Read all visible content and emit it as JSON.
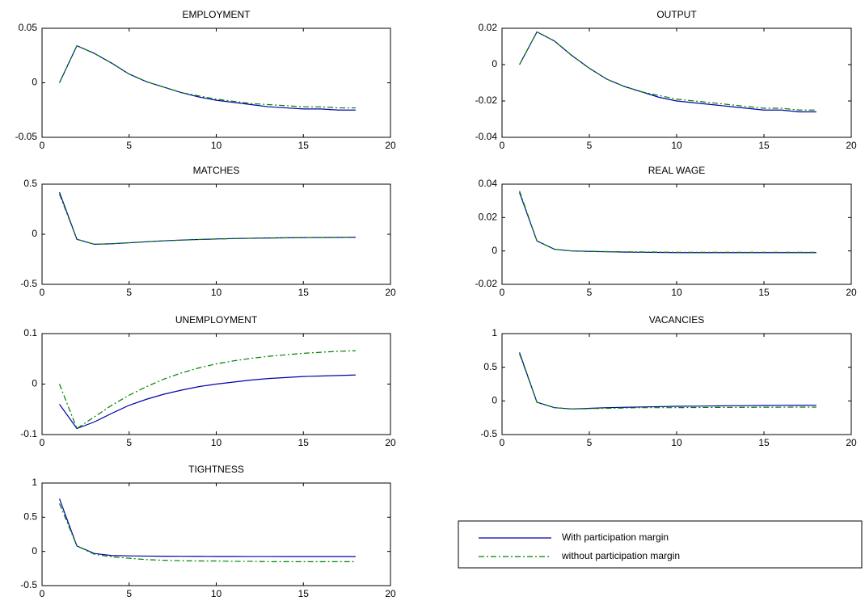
{
  "chart_data": [
    {
      "type": "line",
      "title": "EMPLOYMENT",
      "x": [
        1,
        2,
        3,
        4,
        5,
        6,
        7,
        8,
        9,
        10,
        11,
        12,
        13,
        14,
        15,
        16,
        17,
        18
      ],
      "xlim": [
        0,
        20
      ],
      "xticks": [
        0,
        5,
        10,
        15,
        20
      ],
      "ylim": [
        -0.05,
        0.05
      ],
      "yticks": [
        -0.05,
        0,
        0.05
      ],
      "series": [
        {
          "values": [
            0,
            0.034,
            0.027,
            0.018,
            0.008,
            0.001,
            -0.004,
            -0.009,
            -0.013,
            -0.016,
            -0.018,
            -0.02,
            -0.022,
            -0.023,
            -0.024,
            -0.024,
            -0.025,
            -0.025
          ]
        },
        {
          "values": [
            0,
            0.034,
            0.027,
            0.018,
            0.008,
            0.001,
            -0.004,
            -0.009,
            -0.012,
            -0.015,
            -0.017,
            -0.019,
            -0.02,
            -0.021,
            -0.022,
            -0.022,
            -0.023,
            -0.023
          ]
        }
      ]
    },
    {
      "type": "line",
      "title": "OUTPUT",
      "x": [
        1,
        2,
        3,
        4,
        5,
        6,
        7,
        8,
        9,
        10,
        11,
        12,
        13,
        14,
        15,
        16,
        17,
        18
      ],
      "xlim": [
        0,
        20
      ],
      "xticks": [
        0,
        5,
        10,
        15,
        20
      ],
      "ylim": [
        -0.04,
        0.02
      ],
      "yticks": [
        -0.04,
        -0.02,
        0,
        0.02
      ],
      "series": [
        {
          "values": [
            0,
            0.018,
            0.013,
            0.005,
            -0.002,
            -0.008,
            -0.012,
            -0.015,
            -0.018,
            -0.02,
            -0.021,
            -0.022,
            -0.023,
            -0.024,
            -0.025,
            -0.025,
            -0.026,
            -0.026
          ]
        },
        {
          "values": [
            0,
            0.018,
            0.013,
            0.005,
            -0.002,
            -0.008,
            -0.012,
            -0.015,
            -0.017,
            -0.019,
            -0.02,
            -0.021,
            -0.022,
            -0.023,
            -0.024,
            -0.024,
            -0.025,
            -0.025
          ]
        }
      ]
    },
    {
      "type": "line",
      "title": "MATCHES",
      "x": [
        1,
        2,
        3,
        4,
        5,
        6,
        7,
        8,
        9,
        10,
        11,
        12,
        13,
        14,
        15,
        16,
        17,
        18
      ],
      "xlim": [
        0,
        20
      ],
      "xticks": [
        0,
        5,
        10,
        15,
        20
      ],
      "ylim": [
        -0.5,
        0.5
      ],
      "yticks": [
        -0.5,
        0,
        0.5
      ],
      "series": [
        {
          "values": [
            0.42,
            -0.05,
            -0.1,
            -0.095,
            -0.085,
            -0.075,
            -0.065,
            -0.058,
            -0.052,
            -0.047,
            -0.043,
            -0.04,
            -0.037,
            -0.035,
            -0.033,
            -0.032,
            -0.031,
            -0.03
          ]
        },
        {
          "values": [
            0.4,
            -0.05,
            -0.1,
            -0.095,
            -0.085,
            -0.075,
            -0.066,
            -0.059,
            -0.053,
            -0.048,
            -0.044,
            -0.041,
            -0.038,
            -0.036,
            -0.034,
            -0.033,
            -0.032,
            -0.031
          ]
        }
      ]
    },
    {
      "type": "line",
      "title": "REAL WAGE",
      "x": [
        1,
        2,
        3,
        4,
        5,
        6,
        7,
        8,
        9,
        10,
        11,
        12,
        13,
        14,
        15,
        16,
        17,
        18
      ],
      "xlim": [
        0,
        20
      ],
      "xticks": [
        0,
        5,
        10,
        15,
        20
      ],
      "ylim": [
        -0.02,
        0.04
      ],
      "yticks": [
        -0.02,
        0,
        0.02,
        0.04
      ],
      "series": [
        {
          "values": [
            0.035,
            0.006,
            0.001,
            0,
            -0.0003,
            -0.0005,
            -0.0007,
            -0.0008,
            -0.0009,
            -0.001,
            -0.001,
            -0.001,
            -0.001,
            -0.001,
            -0.001,
            -0.001,
            -0.001,
            -0.001
          ]
        },
        {
          "values": [
            0.036,
            0.006,
            0.001,
            0,
            -0.0002,
            -0.0004,
            -0.0005,
            -0.0006,
            -0.0007,
            -0.0008,
            -0.0008,
            -0.0008,
            -0.0008,
            -0.0008,
            -0.0008,
            -0.0008,
            -0.0008,
            -0.0008
          ]
        }
      ]
    },
    {
      "type": "line",
      "title": "UNEMPLOYMENT",
      "x": [
        1,
        2,
        3,
        4,
        5,
        6,
        7,
        8,
        9,
        10,
        11,
        12,
        13,
        14,
        15,
        16,
        17,
        18
      ],
      "xlim": [
        0,
        20
      ],
      "xticks": [
        0,
        5,
        10,
        15,
        20
      ],
      "ylim": [
        -0.1,
        0.1
      ],
      "yticks": [
        -0.1,
        0,
        0.1
      ],
      "series": [
        {
          "values": [
            -0.04,
            -0.088,
            -0.075,
            -0.058,
            -0.042,
            -0.03,
            -0.02,
            -0.012,
            -0.005,
            0,
            0.004,
            0.008,
            0.011,
            0.013,
            0.015,
            0.016,
            0.017,
            0.018
          ]
        },
        {
          "values": [
            0,
            -0.088,
            -0.065,
            -0.042,
            -0.022,
            -0.005,
            0.01,
            0.022,
            0.032,
            0.04,
            0.046,
            0.051,
            0.055,
            0.058,
            0.061,
            0.063,
            0.065,
            0.066
          ]
        }
      ]
    },
    {
      "type": "line",
      "title": "VACANCIES",
      "x": [
        1,
        2,
        3,
        4,
        5,
        6,
        7,
        8,
        9,
        10,
        11,
        12,
        13,
        14,
        15,
        16,
        17,
        18
      ],
      "xlim": [
        0,
        20
      ],
      "xticks": [
        0,
        5,
        10,
        15,
        20
      ],
      "ylim": [
        -0.5,
        1
      ],
      "yticks": [
        -0.5,
        0,
        0.5,
        1
      ],
      "series": [
        {
          "values": [
            0.72,
            -0.02,
            -0.1,
            -0.12,
            -0.11,
            -0.1,
            -0.095,
            -0.09,
            -0.085,
            -0.08,
            -0.078,
            -0.075,
            -0.072,
            -0.07,
            -0.068,
            -0.066,
            -0.065,
            -0.064
          ]
        },
        {
          "values": [
            0.7,
            -0.02,
            -0.1,
            -0.12,
            -0.115,
            -0.11,
            -0.105,
            -0.1,
            -0.1,
            -0.1,
            -0.098,
            -0.097,
            -0.096,
            -0.095,
            -0.094,
            -0.093,
            -0.092,
            -0.092
          ]
        }
      ]
    },
    {
      "type": "line",
      "title": "TIGHTNESS",
      "x": [
        1,
        2,
        3,
        4,
        5,
        6,
        7,
        8,
        9,
        10,
        11,
        12,
        13,
        14,
        15,
        16,
        17,
        18
      ],
      "xlim": [
        0,
        20
      ],
      "xticks": [
        0,
        5,
        10,
        15,
        20
      ],
      "ylim": [
        -0.5,
        1
      ],
      "yticks": [
        -0.5,
        0,
        0.5,
        1
      ],
      "series": [
        {
          "values": [
            0.77,
            0.08,
            -0.03,
            -0.06,
            -0.065,
            -0.068,
            -0.07,
            -0.071,
            -0.072,
            -0.073,
            -0.073,
            -0.074,
            -0.074,
            -0.075,
            -0.075,
            -0.075,
            -0.075,
            -0.075
          ]
        },
        {
          "values": [
            0.7,
            0.08,
            -0.04,
            -0.08,
            -0.1,
            -0.12,
            -0.13,
            -0.135,
            -0.14,
            -0.14,
            -0.145,
            -0.145,
            -0.15,
            -0.15,
            -0.15,
            -0.15,
            -0.15,
            -0.15
          ]
        }
      ]
    }
  ],
  "legend": [
    {
      "name": "With participation margin",
      "color": "#0000aa",
      "style": "solid"
    },
    {
      "name": "without participation margin",
      "color": "#008000",
      "style": "dashdot"
    }
  ]
}
